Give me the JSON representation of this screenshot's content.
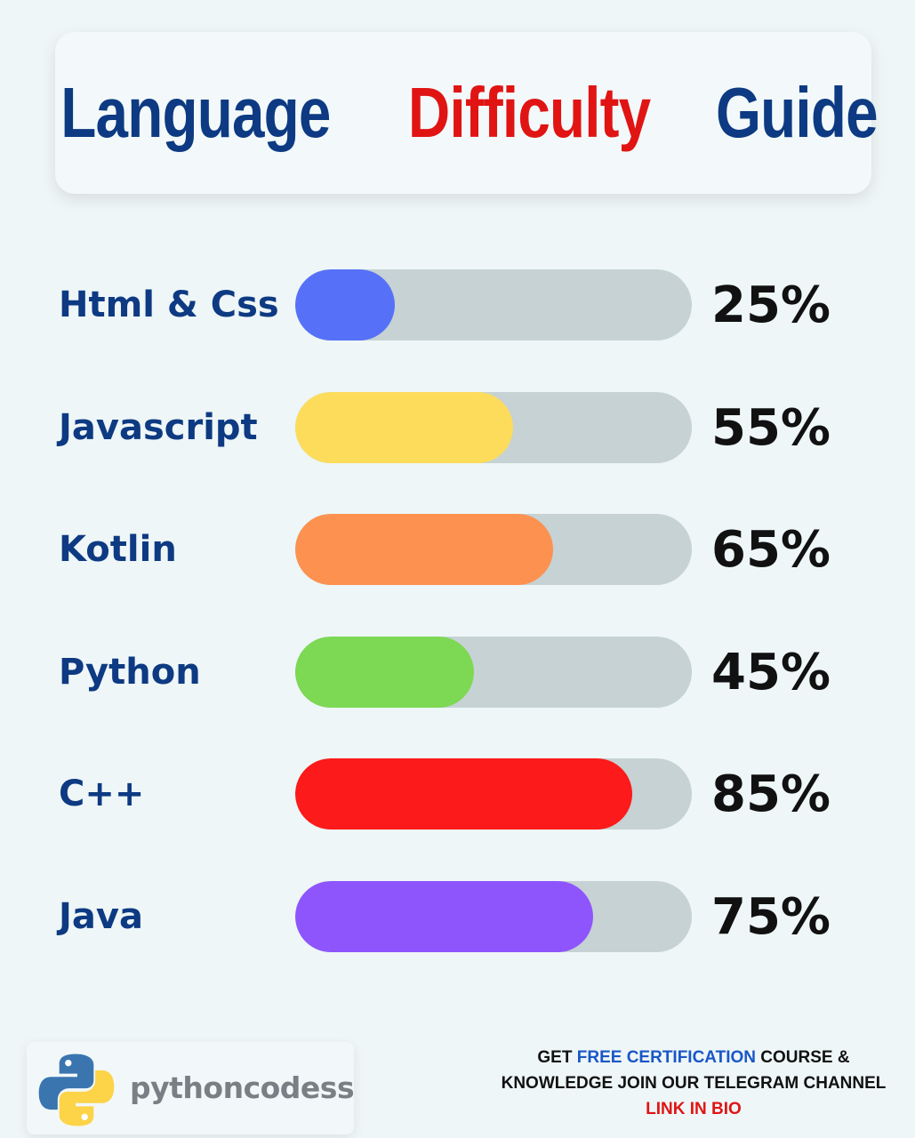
{
  "title": {
    "word1": "Language",
    "word2": "Difficulty",
    "word3": "Guide"
  },
  "chart_data": {
    "type": "bar",
    "orientation": "horizontal",
    "categories": [
      "Html & Css",
      "Javascript",
      "Kotlin",
      "Python",
      "C++",
      "Java"
    ],
    "values": [
      25,
      55,
      65,
      45,
      85,
      75
    ],
    "value_labels": [
      "25%",
      "55%",
      "65%",
      "45%",
      "85%",
      "75%"
    ],
    "xlim": [
      0,
      100
    ],
    "colors": [
      "#5671f8",
      "#fddc5c",
      "#fd9150",
      "#7dd854",
      "#fc1a1a",
      "#8f55fd"
    ],
    "track_color": "#c6d2d3",
    "grid": false
  },
  "brand": {
    "name": "pythoncodess",
    "logo_icon": "python-logo-icon"
  },
  "promo": {
    "line1_part1": "GET ",
    "line1_highlight": "FREE CERTIFICATION",
    "line1_part2": " COURSE &",
    "line2": "KNOWLEDGE JOIN OUR TELEGRAM CHANNEL",
    "line3": "LINK IN BIO"
  },
  "colors": {
    "navy": "#0d3a82",
    "red": "#e11414",
    "blue_highlight": "#1a56c7",
    "background": "#eef6f7"
  }
}
